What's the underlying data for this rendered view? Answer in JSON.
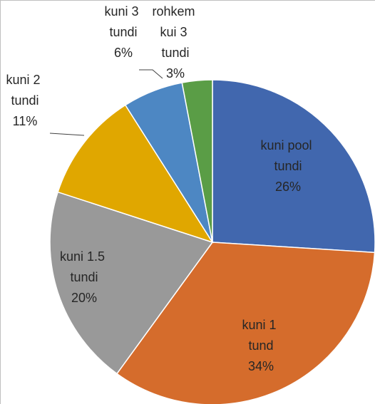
{
  "chart_data": {
    "type": "pie",
    "categories": [
      "kuni pool tundi",
      "kuni 1 tund",
      "kuni 1.5 tundi",
      "kuni 2 tundi",
      "kuni 3 tundi",
      "rohkem kui 3 tundi"
    ],
    "values": [
      26,
      34,
      20,
      11,
      6,
      3
    ],
    "value_labels": [
      "26%",
      "34%",
      "20%",
      "11%",
      "6%",
      "3%"
    ],
    "colors": [
      "#4167ae",
      "#d56c2c",
      "#999999",
      "#e0a700",
      "#4d87c3",
      "#5a9d46"
    ]
  }
}
